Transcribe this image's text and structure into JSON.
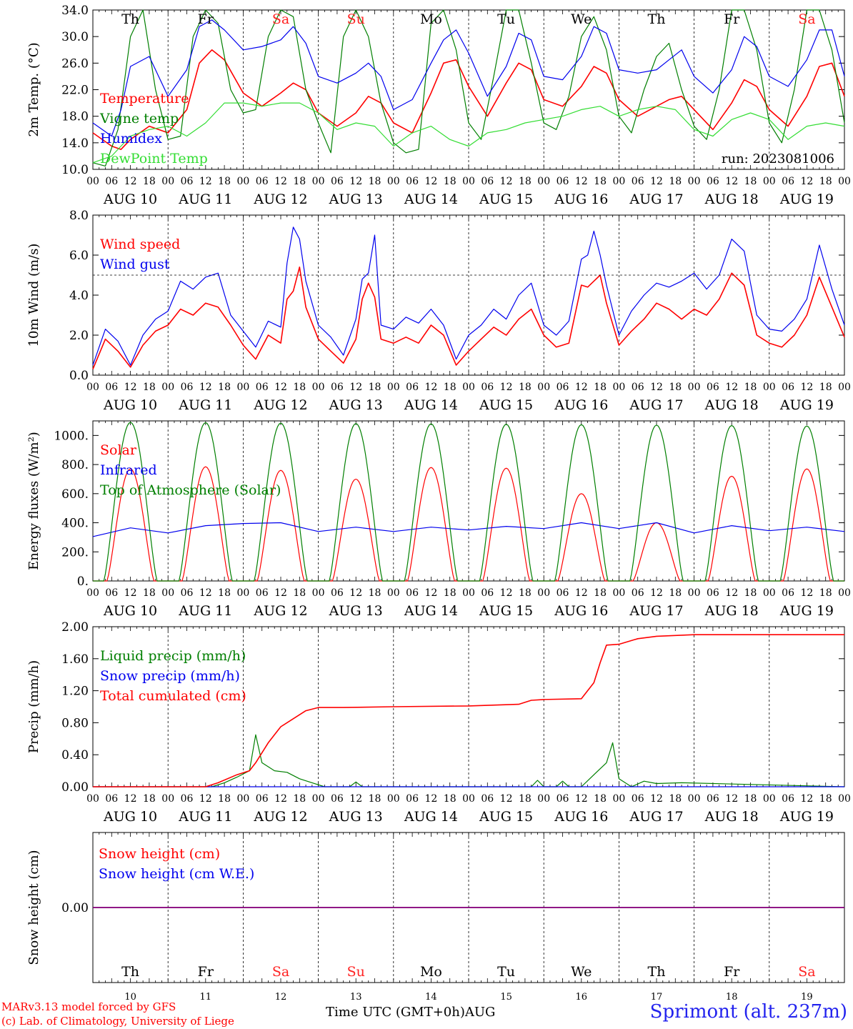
{
  "colors": {
    "red": "#ff0000",
    "green": "#007f00",
    "light_green": "#33dd33",
    "blue": "#0000ee",
    "purple": "#800080",
    "weekend": "#ff2222",
    "weekday": "#000000"
  },
  "days": [
    {
      "abbr": "Th",
      "date": "AUG 10",
      "num": "10",
      "weekend": false
    },
    {
      "abbr": "Fr",
      "date": "AUG 11",
      "num": "11",
      "weekend": false
    },
    {
      "abbr": "Sa",
      "date": "AUG 12",
      "num": "12",
      "weekend": true
    },
    {
      "abbr": "Su",
      "date": "AUG 13",
      "num": "13",
      "weekend": true
    },
    {
      "abbr": "Mo",
      "date": "AUG 14",
      "num": "14",
      "weekend": false
    },
    {
      "abbr": "Tu",
      "date": "AUG 15",
      "num": "15",
      "weekend": false
    },
    {
      "abbr": "We",
      "date": "AUG 16",
      "num": "16",
      "weekend": false
    },
    {
      "abbr": "Th",
      "date": "AUG 17",
      "num": "17",
      "weekend": false
    },
    {
      "abbr": "Fr",
      "date": "AUG 18",
      "num": "18",
      "weekend": false
    },
    {
      "abbr": "Sa",
      "date": "AUG 19",
      "num": "19",
      "weekend": true
    }
  ],
  "hour_ticks": [
    "00",
    "06",
    "12",
    "18"
  ],
  "footer": {
    "model": "MARv3.13 model forced by GFS",
    "lab": "(c) Lab. of Climatology, University of Liege",
    "time_axis": "Time UTC (GMT+0h)AUG",
    "station": "Sprimont (alt. 237m)"
  },
  "chart_data": [
    {
      "type": "line",
      "ylabel": "2m Temp. (°C)",
      "ylim": [
        10.0,
        34.0
      ],
      "yticks": [
        "10.0",
        "14.0",
        "18.0",
        "22.0",
        "26.0",
        "30.0",
        "34.0"
      ],
      "annotation": "run: 2023081006",
      "x_unit": "hours since AUG 10 00 UTC",
      "series": [
        {
          "name": "Temperature",
          "color": "red",
          "x": [
            0,
            6,
            9,
            12,
            18,
            24,
            30,
            34,
            38,
            42,
            48,
            54,
            60,
            64,
            68,
            72,
            78,
            84,
            88,
            92,
            96,
            102,
            108,
            112,
            116,
            120,
            126,
            132,
            136,
            140,
            144,
            150,
            156,
            160,
            164,
            168,
            174,
            180,
            184,
            188,
            192,
            198,
            204,
            208,
            212,
            216,
            222,
            228,
            232,
            236,
            240
          ],
          "y": [
            15.5,
            13.5,
            13.0,
            14.5,
            16.5,
            15.5,
            19.0,
            26.0,
            28.0,
            26.5,
            21.5,
            19.5,
            21.5,
            23.0,
            22.0,
            18.5,
            16.5,
            18.5,
            21.0,
            20.0,
            17.0,
            15.5,
            21.5,
            26.0,
            26.5,
            22.5,
            18.0,
            23.0,
            26.0,
            25.0,
            20.5,
            19.5,
            22.5,
            25.5,
            24.5,
            20.5,
            18.0,
            19.5,
            20.5,
            21.0,
            19.0,
            16.0,
            20.0,
            23.5,
            22.5,
            19.0,
            16.5,
            21.0,
            25.5,
            26.0,
            21.0
          ]
        },
        {
          "name": "Vigne temp",
          "color": "green",
          "x": [
            0,
            4,
            8,
            12,
            16,
            20,
            24,
            28,
            32,
            36,
            40,
            44,
            48,
            52,
            56,
            60,
            64,
            68,
            72,
            76,
            80,
            84,
            88,
            92,
            96,
            100,
            104,
            108,
            112,
            116,
            120,
            124,
            128,
            132,
            136,
            140,
            144,
            148,
            152,
            156,
            160,
            164,
            168,
            172,
            176,
            180,
            184,
            188,
            192,
            196,
            200,
            204,
            208,
            212,
            216,
            220,
            224,
            228,
            232,
            236,
            240
          ],
          "y": [
            11.0,
            10.5,
            16.0,
            30.0,
            34.0,
            22.0,
            14.5,
            15.0,
            30.0,
            34.0,
            32.0,
            22.0,
            18.5,
            19.0,
            30.0,
            34.0,
            33.0,
            22.0,
            17.0,
            12.5,
            30.0,
            34.0,
            30.0,
            20.0,
            14.0,
            12.5,
            13.0,
            32.0,
            34.0,
            28.0,
            17.0,
            14.5,
            24.0,
            34.0,
            34.0,
            26.0,
            17.0,
            16.0,
            21.0,
            30.0,
            33.0,
            28.0,
            18.0,
            15.5,
            22.0,
            27.0,
            29.0,
            22.0,
            16.5,
            14.5,
            22.0,
            34.0,
            34.0,
            28.0,
            17.0,
            14.0,
            22.0,
            34.0,
            34.0,
            28.0,
            17.0
          ]
        },
        {
          "name": "Humidex",
          "color": "blue",
          "x": [
            0,
            6,
            9,
            12,
            18,
            24,
            30,
            34,
            38,
            42,
            48,
            54,
            60,
            64,
            68,
            72,
            78,
            84,
            88,
            92,
            96,
            102,
            108,
            112,
            116,
            120,
            126,
            132,
            136,
            140,
            144,
            150,
            156,
            160,
            164,
            168,
            174,
            180,
            184,
            188,
            192,
            198,
            204,
            208,
            212,
            216,
            222,
            228,
            232,
            236,
            240
          ],
          "y": [
            17.0,
            15.0,
            19.0,
            25.5,
            27.0,
            21.0,
            25.0,
            31.5,
            32.5,
            31.0,
            28.0,
            28.5,
            29.5,
            31.5,
            29.0,
            24.0,
            23.0,
            24.5,
            26.0,
            24.0,
            19.0,
            20.5,
            26.0,
            29.5,
            31.0,
            27.5,
            21.0,
            25.5,
            30.5,
            29.5,
            24.0,
            23.5,
            27.0,
            31.5,
            30.5,
            25.0,
            24.5,
            25.0,
            26.5,
            28.0,
            24.0,
            21.5,
            25.0,
            30.0,
            28.5,
            24.0,
            22.5,
            26.5,
            31.0,
            31.0,
            24.0
          ]
        },
        {
          "name": "DewPoint Temp",
          "color": "light_green",
          "x": [
            0,
            6,
            12,
            18,
            24,
            30,
            36,
            42,
            48,
            54,
            60,
            66,
            72,
            78,
            84,
            90,
            96,
            102,
            108,
            114,
            120,
            126,
            132,
            138,
            144,
            150,
            156,
            162,
            168,
            174,
            180,
            186,
            192,
            198,
            204,
            210,
            216,
            222,
            228,
            234,
            240
          ],
          "y": [
            11.0,
            12.0,
            15.0,
            16.0,
            16.5,
            15.0,
            17.0,
            20.0,
            20.0,
            19.5,
            20.0,
            20.0,
            18.5,
            16.0,
            17.0,
            16.5,
            13.5,
            15.5,
            16.5,
            14.5,
            13.5,
            15.5,
            16.0,
            17.0,
            17.5,
            18.0,
            19.0,
            19.5,
            18.0,
            19.0,
            19.5,
            19.0,
            16.0,
            15.0,
            17.5,
            18.5,
            17.5,
            14.5,
            16.5,
            17.0,
            16.5
          ]
        }
      ]
    },
    {
      "type": "line",
      "ylabel": "10m Wind (m/s)",
      "ylim": [
        0.0,
        8.0
      ],
      "yticks": [
        "0.0",
        "2.0",
        "4.0",
        "6.0",
        "8.0"
      ],
      "reference_line": 5.0,
      "x_unit": "hours since AUG 10 00 UTC",
      "series": [
        {
          "name": "Wind speed",
          "color": "red",
          "x": [
            0,
            4,
            8,
            12,
            16,
            20,
            24,
            28,
            32,
            36,
            40,
            44,
            48,
            52,
            56,
            60,
            62,
            64,
            66,
            68,
            72,
            76,
            80,
            84,
            86,
            88,
            90,
            92,
            96,
            100,
            104,
            108,
            112,
            116,
            120,
            124,
            128,
            132,
            136,
            140,
            144,
            148,
            152,
            156,
            158,
            160,
            162,
            164,
            168,
            172,
            176,
            180,
            184,
            188,
            192,
            196,
            200,
            204,
            208,
            212,
            216,
            220,
            224,
            228,
            232,
            236,
            240
          ],
          "y": [
            0.3,
            1.8,
            1.2,
            0.4,
            1.5,
            2.2,
            2.5,
            3.3,
            3.0,
            3.6,
            3.4,
            2.5,
            1.5,
            0.8,
            2.0,
            1.6,
            3.8,
            4.2,
            5.4,
            3.4,
            1.8,
            1.2,
            0.6,
            1.8,
            3.8,
            4.6,
            3.9,
            1.8,
            1.6,
            1.9,
            1.6,
            2.5,
            2.0,
            0.5,
            1.2,
            1.8,
            2.4,
            2.0,
            2.8,
            3.3,
            2.0,
            1.4,
            1.6,
            4.5,
            4.4,
            4.7,
            5.0,
            3.6,
            1.5,
            2.2,
            2.8,
            3.6,
            3.3,
            2.8,
            3.3,
            3.0,
            3.8,
            5.1,
            4.5,
            2.0,
            1.6,
            1.4,
            2.0,
            3.0,
            4.9,
            3.4,
            1.9
          ]
        },
        {
          "name": "Wind gust",
          "color": "blue",
          "x": [
            0,
            4,
            8,
            12,
            16,
            20,
            24,
            28,
            32,
            36,
            40,
            44,
            48,
            52,
            56,
            60,
            62,
            64,
            66,
            68,
            72,
            76,
            80,
            84,
            86,
            88,
            90,
            92,
            96,
            100,
            104,
            108,
            112,
            116,
            120,
            124,
            128,
            132,
            136,
            140,
            144,
            148,
            152,
            156,
            158,
            160,
            162,
            164,
            168,
            172,
            176,
            180,
            184,
            188,
            192,
            196,
            200,
            204,
            208,
            212,
            216,
            220,
            224,
            228,
            232,
            236,
            240
          ],
          "y": [
            0.5,
            2.3,
            1.7,
            0.5,
            2.0,
            2.8,
            3.2,
            4.7,
            4.3,
            4.9,
            5.1,
            3.0,
            2.2,
            1.4,
            2.7,
            2.4,
            5.6,
            7.4,
            6.8,
            4.7,
            2.5,
            1.9,
            1.0,
            2.8,
            4.8,
            5.1,
            7.0,
            2.5,
            2.3,
            2.9,
            2.6,
            3.3,
            2.5,
            0.8,
            2.0,
            2.5,
            3.3,
            2.8,
            4.0,
            4.6,
            2.5,
            2.0,
            2.7,
            5.8,
            6.0,
            7.2,
            6.0,
            4.5,
            2.0,
            3.2,
            4.0,
            4.6,
            4.4,
            4.7,
            5.1,
            4.3,
            5.0,
            6.8,
            6.2,
            3.0,
            2.3,
            2.2,
            2.8,
            3.8,
            6.5,
            4.3,
            2.5
          ]
        }
      ]
    },
    {
      "type": "line",
      "ylabel": "Energy fluxes (W/m²)",
      "ylim": [
        0,
        1100
      ],
      "yticks": [
        "0.",
        "200.",
        "400.",
        "600.",
        "800.",
        "1000."
      ],
      "x_unit": "hours since AUG 10 00 UTC",
      "series": [
        {
          "name": "Solar",
          "color": "red",
          "daily_peaks": [
            770,
            785,
            760,
            700,
            780,
            775,
            600,
            400,
            720,
            770
          ]
        },
        {
          "name": "Infrared",
          "color": "blue",
          "x": [
            0,
            12,
            24,
            36,
            48,
            60,
            72,
            84,
            96,
            108,
            120,
            132,
            144,
            156,
            168,
            180,
            192,
            204,
            216,
            228,
            240
          ],
          "y": [
            305,
            365,
            330,
            380,
            395,
            400,
            340,
            370,
            340,
            370,
            350,
            375,
            360,
            400,
            360,
            400,
            330,
            380,
            345,
            370,
            340
          ]
        },
        {
          "name": "Top of Atmosphere (Solar)",
          "color": "green",
          "daily_peaks": [
            1090,
            1088,
            1085,
            1082,
            1080,
            1077,
            1074,
            1071,
            1068,
            1065
          ]
        }
      ]
    },
    {
      "type": "line",
      "ylabel": "Precip (mm/h)",
      "ylim": [
        0.0,
        2.0
      ],
      "yticks": [
        "0.00",
        "0.40",
        "0.80",
        "1.20",
        "1.60",
        "2.00"
      ],
      "x_unit": "hours since AUG 10 00 UTC",
      "series": [
        {
          "name": "Liquid precip (mm/h)",
          "color": "green",
          "x": [
            0,
            38,
            42,
            46,
            50,
            52,
            54,
            56,
            58,
            62,
            66,
            70,
            74,
            82,
            84,
            86,
            140,
            142,
            144,
            148,
            150,
            152,
            156,
            160,
            164,
            166,
            168,
            172,
            176,
            180,
            188,
            240
          ],
          "y": [
            0,
            0,
            0.05,
            0.12,
            0.2,
            0.65,
            0.3,
            0.25,
            0.2,
            0.18,
            0.1,
            0.05,
            0,
            0,
            0.06,
            0,
            0,
            0.08,
            0,
            0,
            0.07,
            0,
            0,
            0.15,
            0.3,
            0.55,
            0.1,
            0,
            0.07,
            0.04,
            0.05,
            0
          ]
        },
        {
          "name": "Snow precip (mm/h)",
          "color": "blue",
          "x": [
            0,
            240
          ],
          "y": [
            0,
            0
          ]
        },
        {
          "name": "Total cumulated (cm)",
          "color": "red",
          "x": [
            0,
            36,
            40,
            46,
            50,
            52,
            56,
            60,
            64,
            68,
            72,
            80,
            96,
            120,
            136,
            140,
            144,
            156,
            160,
            162,
            164,
            168,
            174,
            180,
            192,
            240
          ],
          "y": [
            0,
            0,
            0.05,
            0.15,
            0.2,
            0.3,
            0.55,
            0.75,
            0.85,
            0.95,
            0.99,
            0.99,
            1.0,
            1.01,
            1.03,
            1.08,
            1.09,
            1.1,
            1.3,
            1.55,
            1.77,
            1.78,
            1.85,
            1.88,
            1.9,
            1.9
          ]
        }
      ]
    },
    {
      "type": "line",
      "ylabel": "Snow height (cm)",
      "ylim": [
        -1,
        1
      ],
      "yticks": [
        "0.00"
      ],
      "x_unit": "hours since AUG 10 00 UTC",
      "series": [
        {
          "name": "Snow height (cm)",
          "color": "red",
          "x": [
            0,
            240
          ],
          "y": [
            0,
            0
          ]
        },
        {
          "name": "Snow height (cm W.E.)",
          "color": "blue",
          "x": [
            0,
            240
          ],
          "y": [
            0,
            0
          ]
        }
      ]
    }
  ]
}
